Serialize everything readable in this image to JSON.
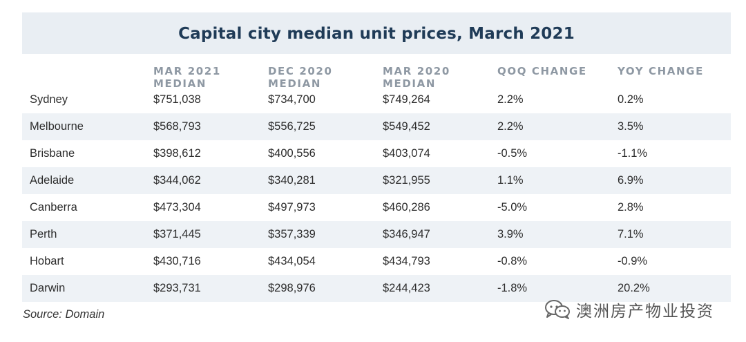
{
  "table": {
    "title": "Capital city median unit prices, March 2021",
    "columns": [
      {
        "line1": "",
        "line2": ""
      },
      {
        "line1": "MAR 2021",
        "line2": "MEDIAN"
      },
      {
        "line1": "DEC 2020",
        "line2": "MEDIAN"
      },
      {
        "line1": "MAR 2020",
        "line2": "MEDIAN"
      },
      {
        "line1": "QOQ CHANGE",
        "line2": ""
      },
      {
        "line1": "YOY CHANGE",
        "line2": ""
      }
    ],
    "rows": [
      {
        "city": "Sydney",
        "mar2021": "$751,038",
        "dec2020": "$734,700",
        "mar2020": "$749,264",
        "qoq": "2.2%",
        "yoy": "0.2%"
      },
      {
        "city": "Melbourne",
        "mar2021": "$568,793",
        "dec2020": "$556,725",
        "mar2020": "$549,452",
        "qoq": "2.2%",
        "yoy": "3.5%"
      },
      {
        "city": "Brisbane",
        "mar2021": "$398,612",
        "dec2020": "$400,556",
        "mar2020": "$403,074",
        "qoq": "-0.5%",
        "yoy": "-1.1%"
      },
      {
        "city": "Adelaide",
        "mar2021": "$344,062",
        "dec2020": "$340,281",
        "mar2020": "$321,955",
        "qoq": "1.1%",
        "yoy": "6.9%"
      },
      {
        "city": "Canberra",
        "mar2021": "$473,304",
        "dec2020": "$497,973",
        "mar2020": "$460,286",
        "qoq": "-5.0%",
        "yoy": "2.8%"
      },
      {
        "city": "Perth",
        "mar2021": "$371,445",
        "dec2020": "$357,339",
        "mar2020": "$346,947",
        "qoq": "3.9%",
        "yoy": "7.1%"
      },
      {
        "city": "Hobart",
        "mar2021": "$430,716",
        "dec2020": "$434,054",
        "mar2020": "$434,793",
        "qoq": "-0.8%",
        "yoy": "-0.9%"
      },
      {
        "city": "Darwin",
        "mar2021": "$293,731",
        "dec2020": "$298,976",
        "mar2020": "$244,423",
        "qoq": "-1.8%",
        "yoy": "20.2%"
      }
    ]
  },
  "source": "Source: Domain",
  "watermark": {
    "icon": "wechat-icon",
    "text": "澳洲房产物业投资"
  },
  "colors": {
    "title_bar_bg": "#e9eef3",
    "title_text": "#1f3b57",
    "header_text": "#8e98a3",
    "shaded_row_bg": "#eef2f6"
  }
}
